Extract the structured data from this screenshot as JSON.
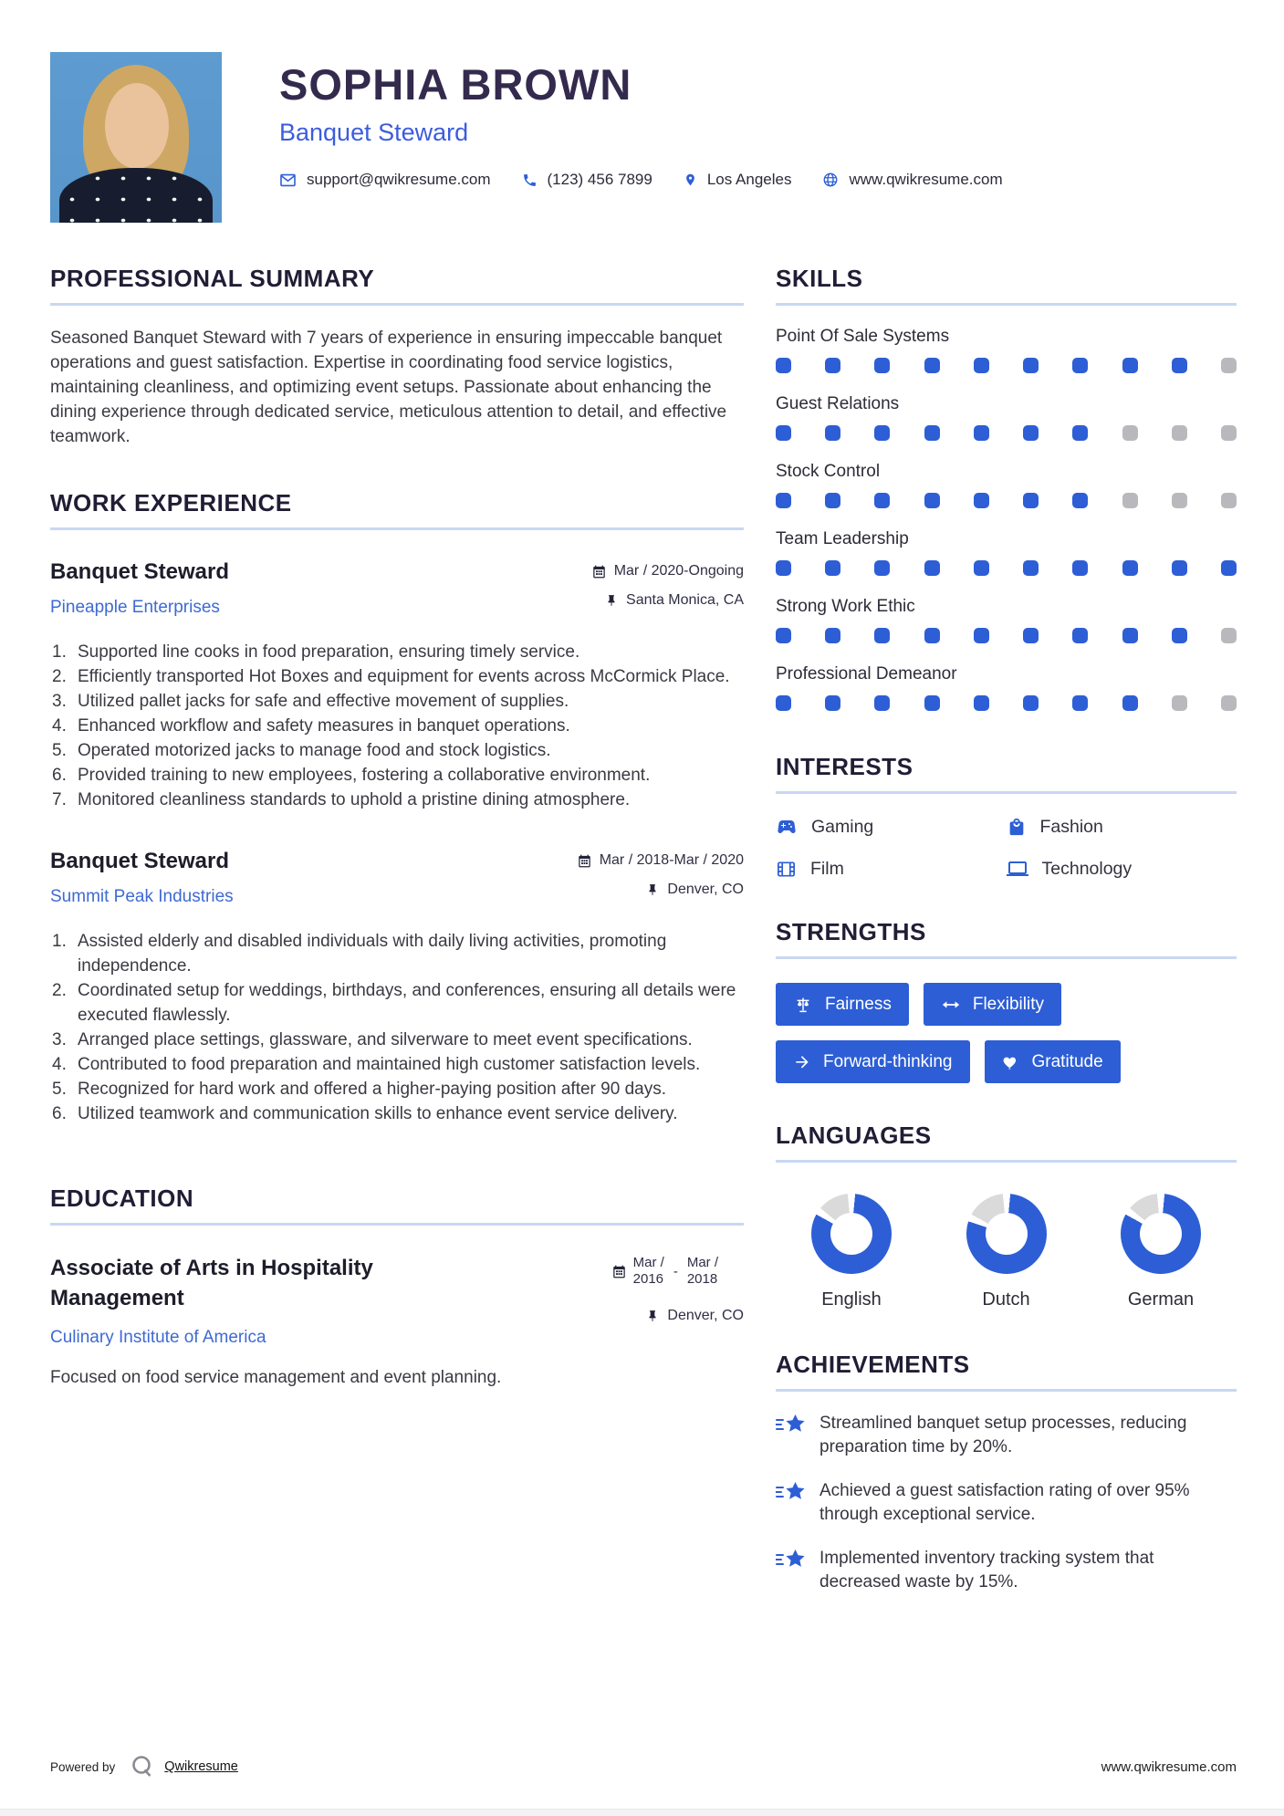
{
  "header": {
    "name": "SOPHIA BROWN",
    "title": "Banquet Steward",
    "email": "support@qwikresume.com",
    "phone": "(123) 456 7899",
    "location": "Los Angeles",
    "website": "www.qwikresume.com"
  },
  "summary": {
    "heading": "PROFESSIONAL SUMMARY",
    "text": "Seasoned Banquet Steward with 7 years of experience in ensuring impeccable banquet operations and guest satisfaction. Expertise in coordinating food service logistics, maintaining cleanliness, and optimizing event setups. Passionate about enhancing the dining experience through dedicated service, meticulous attention to detail, and effective teamwork."
  },
  "experience": {
    "heading": "WORK EXPERIENCE",
    "jobs": [
      {
        "title": "Banquet Steward",
        "company": "Pineapple Enterprises",
        "dates": "Mar / 2020-Ongoing",
        "location": "Santa Monica, CA",
        "bullets": [
          "Supported line cooks in food preparation, ensuring timely service.",
          "Efficiently transported Hot Boxes and equipment for events across McCormick Place.",
          "Utilized pallet jacks for safe and effective movement of supplies.",
          "Enhanced workflow and safety measures in banquet operations.",
          "Operated motorized jacks to manage food and stock logistics.",
          "Provided training to new employees, fostering a collaborative environment.",
          "Monitored cleanliness standards to uphold a pristine dining atmosphere."
        ]
      },
      {
        "title": "Banquet Steward",
        "company": "Summit Peak Industries",
        "dates": "Mar / 2018-Mar / 2020",
        "location": "Denver, CO",
        "bullets": [
          "Assisted elderly and disabled individuals with daily living activities, promoting independence.",
          "Coordinated setup for weddings, birthdays, and conferences, ensuring all details were executed flawlessly.",
          "Arranged place settings, glassware, and silverware to meet event specifications.",
          "Contributed to food preparation and maintained high customer satisfaction levels.",
          "Recognized for hard work and offered a higher-paying position after 90 days.",
          "Utilized teamwork and communication skills to enhance event service delivery."
        ]
      }
    ]
  },
  "education": {
    "heading": "EDUCATION",
    "degree": "Associate of Arts in Hospitality Management",
    "school": "Culinary Institute of America",
    "date_start_line1": "Mar /",
    "date_start_line2": "2016",
    "date_sep": "-",
    "date_end_line1": "Mar /",
    "date_end_line2": "2018",
    "location": "Denver, CO",
    "description": "Focused on food service management and event planning."
  },
  "skills": {
    "heading": "SKILLS",
    "max": 10,
    "items": [
      {
        "name": "Point Of Sale Systems",
        "rating": 9
      },
      {
        "name": "Guest Relations",
        "rating": 7
      },
      {
        "name": "Stock Control",
        "rating": 7
      },
      {
        "name": "Team Leadership",
        "rating": 10
      },
      {
        "name": "Strong Work Ethic",
        "rating": 9
      },
      {
        "name": "Professional Demeanor",
        "rating": 8
      }
    ]
  },
  "interests": {
    "heading": "INTERESTS",
    "items": [
      {
        "label": "Gaming"
      },
      {
        "label": "Fashion"
      },
      {
        "label": "Film"
      },
      {
        "label": "Technology"
      }
    ]
  },
  "strengths": {
    "heading": "STRENGTHS",
    "items": [
      {
        "label": "Fairness"
      },
      {
        "label": "Flexibility"
      },
      {
        "label": "Forward-thinking"
      },
      {
        "label": "Gratitude"
      }
    ]
  },
  "languages": {
    "heading": "LANGUAGES",
    "items": [
      {
        "name": "English",
        "percent": 83
      },
      {
        "name": "Dutch",
        "percent": 80
      },
      {
        "name": "German",
        "percent": 83
      }
    ]
  },
  "achievements": {
    "heading": "ACHIEVEMENTS",
    "items": [
      {
        "text": "Streamlined banquet setup processes, reducing preparation time by 20%."
      },
      {
        "text": "Achieved a guest satisfaction rating of over 95% through exceptional service."
      },
      {
        "text": "Implemented inventory tracking system that decreased waste by 15%."
      }
    ]
  },
  "footer": {
    "powered_by": "Powered by",
    "brand": "Qwikresume",
    "url": "www.qwikresume.com"
  },
  "colors": {
    "accent_blue": "#2d5ed6",
    "link_blue": "#3e6ad2",
    "heading_dark": "#201d35",
    "name_dark": "#332a4d",
    "dot_gray": "#b9b9bd",
    "donut_gray": "#dadada"
  }
}
